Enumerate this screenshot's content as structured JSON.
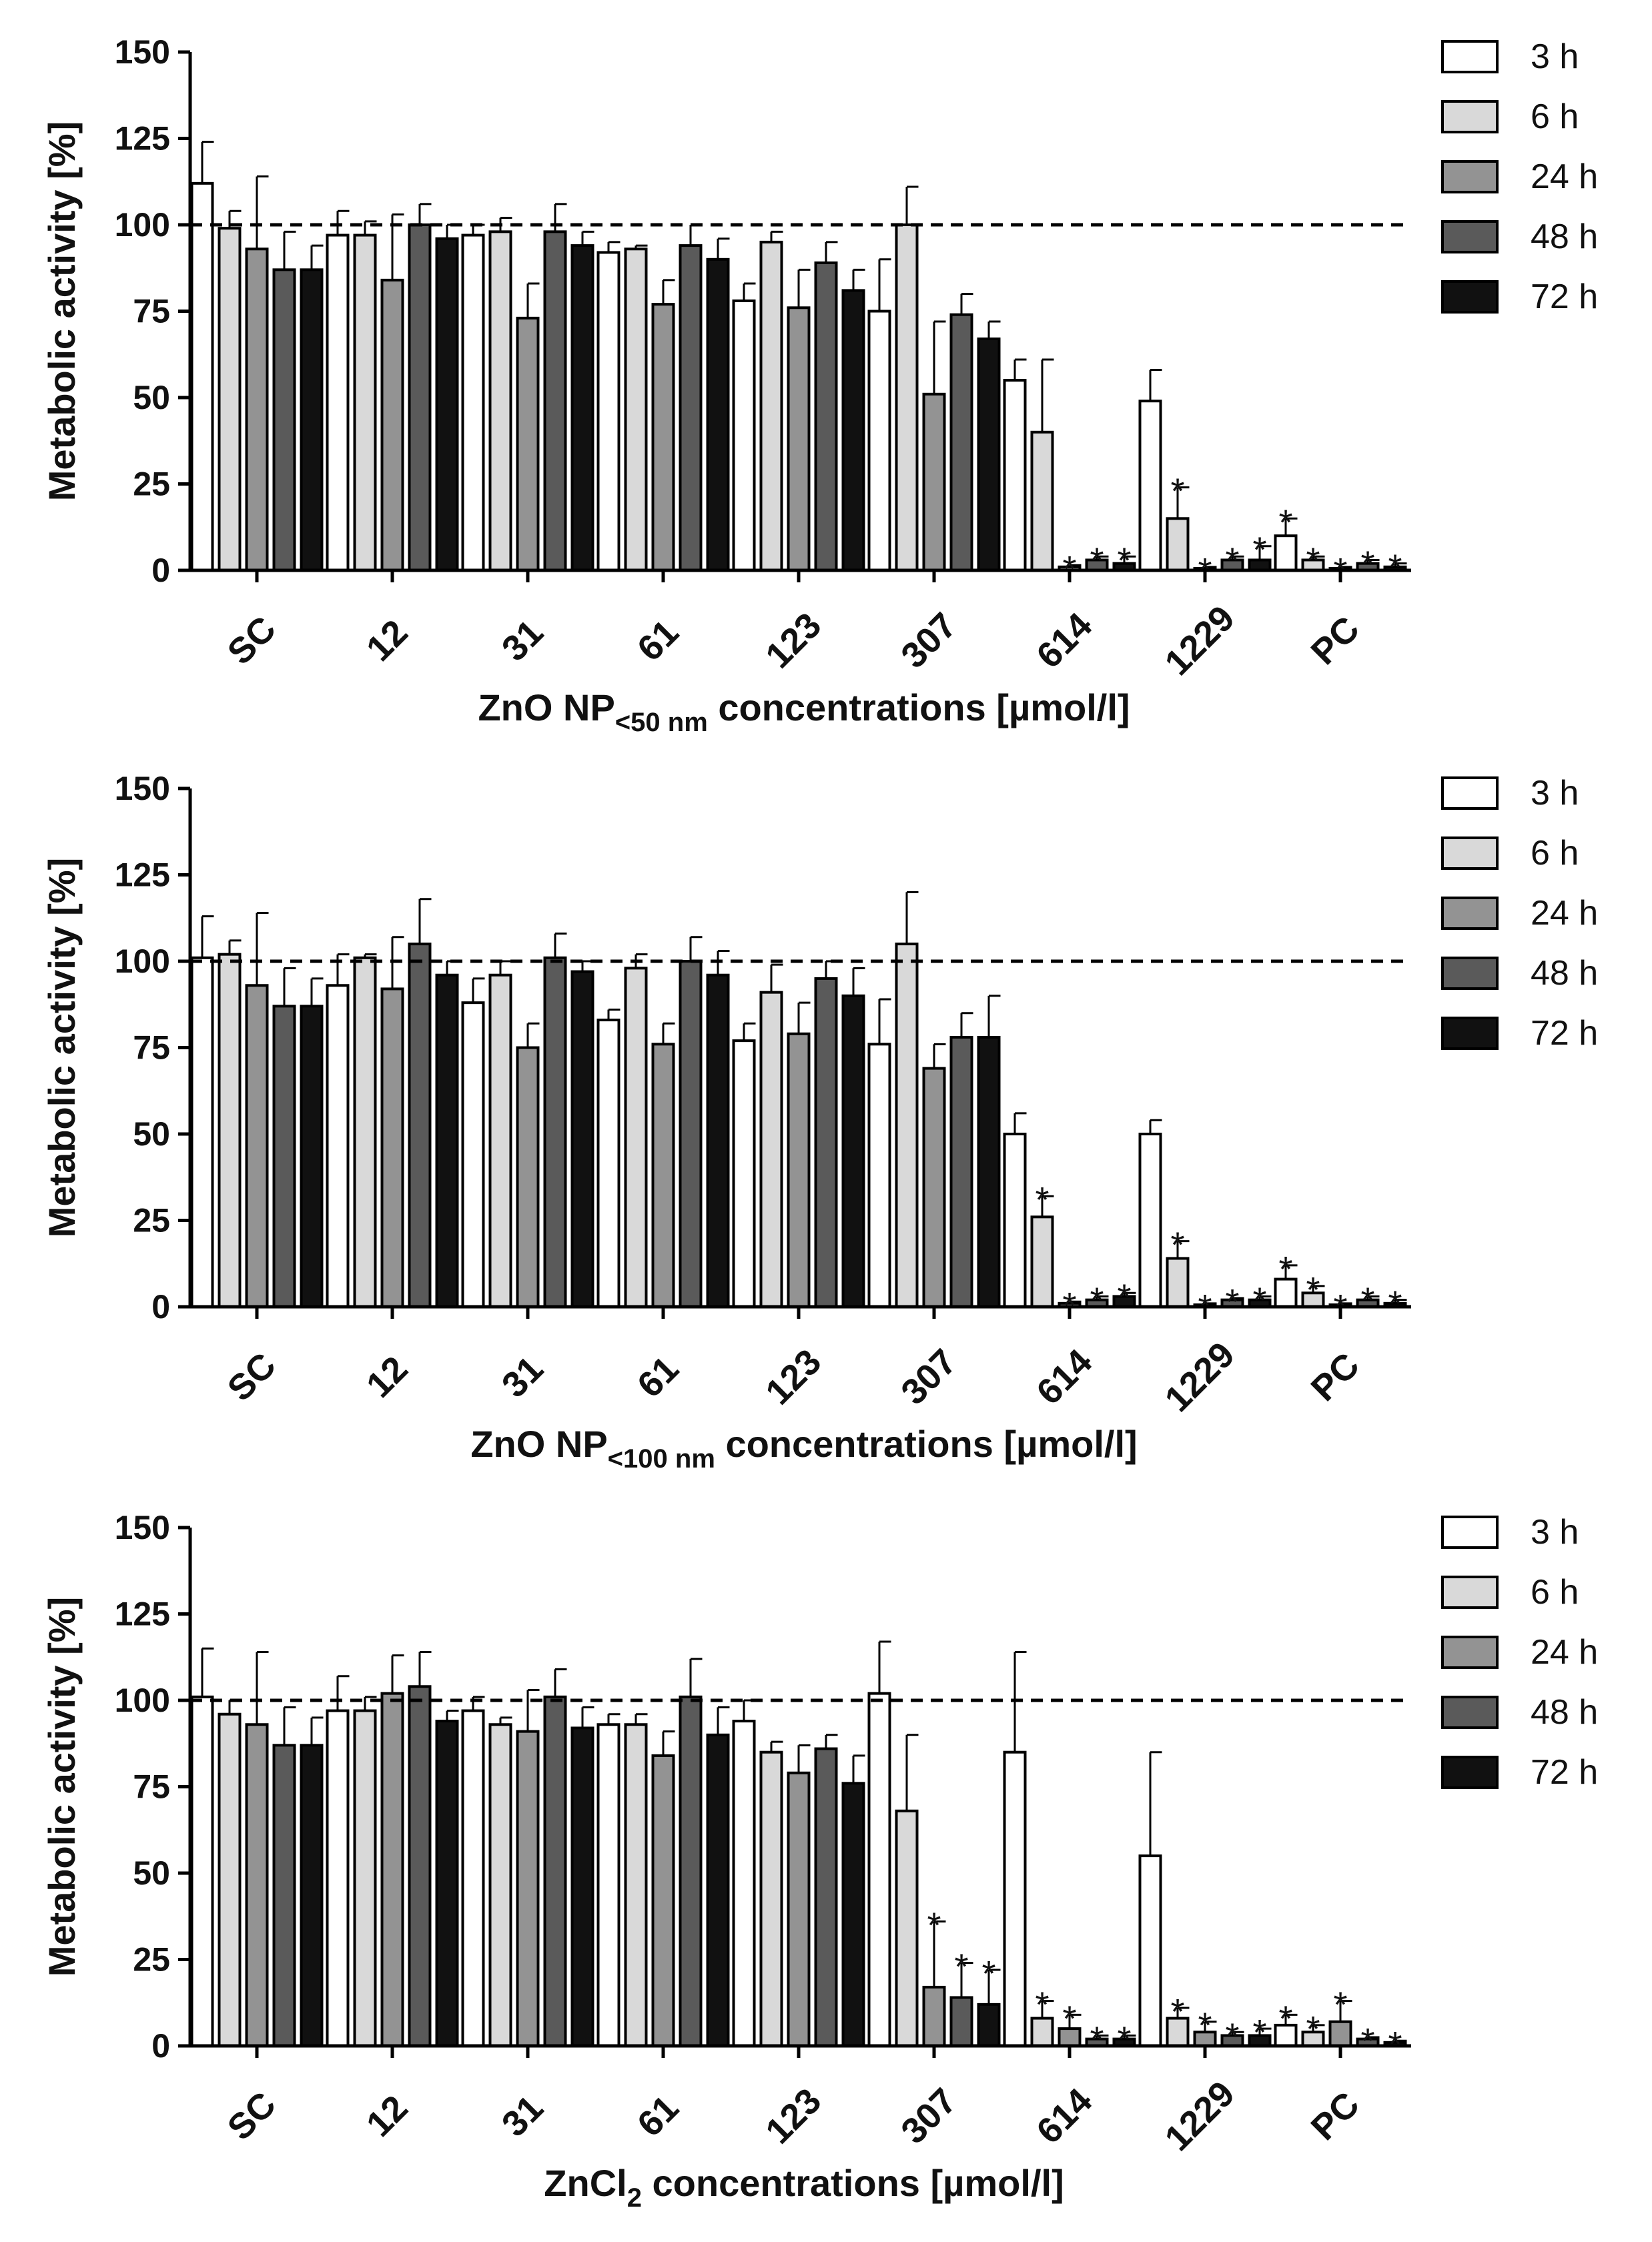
{
  "figure": {
    "background": "#ffffff"
  },
  "chart_data": [
    {
      "type": "bar",
      "title": "",
      "ylabel": "Metabolic activity [%]",
      "xlabel": {
        "main": "ZnO NP",
        "sub": "<50 nm",
        "rest": " concentrations [µmol/l]"
      },
      "ylim": [
        0,
        150
      ],
      "yticks": [
        0,
        25,
        50,
        75,
        100,
        125,
        150
      ],
      "reference_line": 100,
      "grid": false,
      "legend_position": "right",
      "categories": [
        "SC",
        "12",
        "31",
        "61",
        "123",
        "307",
        "614",
        "1229",
        "PC"
      ],
      "series": [
        {
          "name": "3 h",
          "color": "#ffffff",
          "values": [
            112,
            97,
            97,
            92,
            78,
            75,
            55,
            49,
            10
          ],
          "errors": [
            12,
            7,
            3,
            3,
            5,
            15,
            6,
            9,
            5
          ],
          "stars": [
            false,
            false,
            false,
            false,
            false,
            false,
            false,
            false,
            true
          ]
        },
        {
          "name": "6 h",
          "color": "#d9d9d9",
          "values": [
            99,
            97,
            98,
            93,
            95,
            100,
            40,
            15,
            3
          ],
          "errors": [
            5,
            4,
            4,
            1,
            3,
            11,
            21,
            9,
            1
          ],
          "stars": [
            false,
            false,
            false,
            false,
            false,
            false,
            false,
            true,
            true
          ]
        },
        {
          "name": "24 h",
          "color": "#939393",
          "values": [
            93,
            84,
            73,
            77,
            76,
            51,
            1,
            0.5,
            0.5
          ],
          "errors": [
            21,
            19,
            10,
            7,
            11,
            21,
            0.5,
            0.5,
            0.5
          ],
          "stars": [
            false,
            false,
            false,
            false,
            false,
            false,
            true,
            true,
            true
          ]
        },
        {
          "name": "48 h",
          "color": "#5a5a5a",
          "values": [
            87,
            100,
            98,
            94,
            89,
            74,
            3,
            3,
            2
          ],
          "errors": [
            11,
            6,
            8,
            6,
            6,
            6,
            1,
            1,
            1
          ],
          "stars": [
            false,
            false,
            false,
            false,
            false,
            false,
            true,
            true,
            true
          ]
        },
        {
          "name": "72 h",
          "color": "#111111",
          "values": [
            87,
            96,
            94,
            90,
            81,
            67,
            2,
            3,
            1
          ],
          "errors": [
            7,
            4,
            4,
            6,
            6,
            5,
            2,
            4,
            1
          ],
          "stars": [
            false,
            false,
            false,
            false,
            false,
            false,
            true,
            true,
            true
          ]
        }
      ]
    },
    {
      "type": "bar",
      "title": "",
      "ylabel": "Metabolic activity [%]",
      "xlabel": {
        "main": "ZnO NP",
        "sub": "<100 nm",
        "rest": " concentrations [µmol/l]"
      },
      "ylim": [
        0,
        150
      ],
      "yticks": [
        0,
        25,
        50,
        75,
        100,
        125,
        150
      ],
      "reference_line": 100,
      "grid": false,
      "legend_position": "right",
      "categories": [
        "SC",
        "12",
        "31",
        "61",
        "123",
        "307",
        "614",
        "1229",
        "PC"
      ],
      "series": [
        {
          "name": "3 h",
          "color": "#ffffff",
          "values": [
            101,
            93,
            88,
            83,
            77,
            76,
            50,
            50,
            8
          ],
          "errors": [
            12,
            9,
            7,
            3,
            5,
            13,
            6,
            4,
            4
          ],
          "stars": [
            false,
            false,
            false,
            false,
            false,
            false,
            false,
            false,
            true
          ]
        },
        {
          "name": "6 h",
          "color": "#d9d9d9",
          "values": [
            102,
            101,
            96,
            98,
            91,
            105,
            26,
            14,
            4
          ],
          "errors": [
            4,
            1,
            4,
            4,
            8,
            15,
            6,
            5,
            2
          ],
          "stars": [
            false,
            false,
            false,
            false,
            false,
            false,
            true,
            true,
            true
          ]
        },
        {
          "name": "24 h",
          "color": "#939393",
          "values": [
            93,
            92,
            75,
            76,
            79,
            69,
            1,
            0.5,
            0.5
          ],
          "errors": [
            21,
            15,
            7,
            6,
            9,
            7,
            0.5,
            0.5,
            0.5
          ],
          "stars": [
            false,
            false,
            false,
            false,
            false,
            false,
            true,
            true,
            true
          ]
        },
        {
          "name": "48 h",
          "color": "#5a5a5a",
          "values": [
            87,
            105,
            101,
            100,
            95,
            78,
            2,
            2,
            2
          ],
          "errors": [
            11,
            13,
            7,
            7,
            5,
            7,
            1,
            0.5,
            1
          ],
          "stars": [
            false,
            false,
            false,
            false,
            false,
            false,
            true,
            true,
            true
          ]
        },
        {
          "name": "72 h",
          "color": "#111111",
          "values": [
            87,
            96,
            97,
            96,
            90,
            78,
            3,
            2,
            1
          ],
          "errors": [
            8,
            4,
            3,
            7,
            8,
            12,
            1,
            1,
            1
          ],
          "stars": [
            false,
            false,
            false,
            false,
            false,
            false,
            true,
            true,
            true
          ]
        }
      ]
    },
    {
      "type": "bar",
      "title": "",
      "ylabel": "Metabolic activity [%]",
      "xlabel": {
        "main": "ZnCl",
        "sub": "2",
        "rest": " concentrations [µmol/l]"
      },
      "ylim": [
        0,
        150
      ],
      "yticks": [
        0,
        25,
        50,
        75,
        100,
        125,
        150
      ],
      "reference_line": 100,
      "grid": false,
      "legend_position": "right",
      "categories": [
        "SC",
        "12",
        "31",
        "61",
        "123",
        "307",
        "614",
        "1229",
        "PC"
      ],
      "series": [
        {
          "name": "3 h",
          "color": "#ffffff",
          "values": [
            101,
            97,
            97,
            93,
            94,
            102,
            85,
            55,
            6
          ],
          "errors": [
            14,
            10,
            4,
            3,
            6,
            15,
            29,
            30,
            3
          ],
          "stars": [
            false,
            false,
            false,
            false,
            false,
            false,
            false,
            false,
            true
          ]
        },
        {
          "name": "6 h",
          "color": "#d9d9d9",
          "values": [
            96,
            97,
            93,
            93,
            85,
            68,
            8,
            8,
            4
          ],
          "errors": [
            4,
            4,
            2,
            3,
            3,
            22,
            5,
            3,
            2
          ],
          "stars": [
            false,
            false,
            false,
            false,
            false,
            false,
            true,
            true,
            true
          ]
        },
        {
          "name": "24 h",
          "color": "#939393",
          "values": [
            93,
            102,
            91,
            84,
            79,
            17,
            5,
            4,
            7
          ],
          "errors": [
            21,
            11,
            12,
            7,
            8,
            19,
            4,
            3,
            6
          ],
          "stars": [
            false,
            false,
            false,
            false,
            false,
            true,
            true,
            true,
            true
          ]
        },
        {
          "name": "48 h",
          "color": "#5a5a5a",
          "values": [
            87,
            104,
            101,
            101,
            86,
            14,
            2,
            3,
            2
          ],
          "errors": [
            11,
            10,
            8,
            11,
            4,
            10,
            1,
            1,
            0.5
          ],
          "stars": [
            false,
            false,
            false,
            false,
            false,
            true,
            true,
            true,
            true
          ]
        },
        {
          "name": "72 h",
          "color": "#111111",
          "values": [
            87,
            94,
            92,
            90,
            76,
            12,
            2,
            3,
            1
          ],
          "errors": [
            8,
            3,
            6,
            8,
            8,
            10,
            1,
            2,
            0.5
          ],
          "stars": [
            false,
            false,
            false,
            false,
            false,
            true,
            true,
            true,
            true
          ]
        }
      ]
    }
  ]
}
